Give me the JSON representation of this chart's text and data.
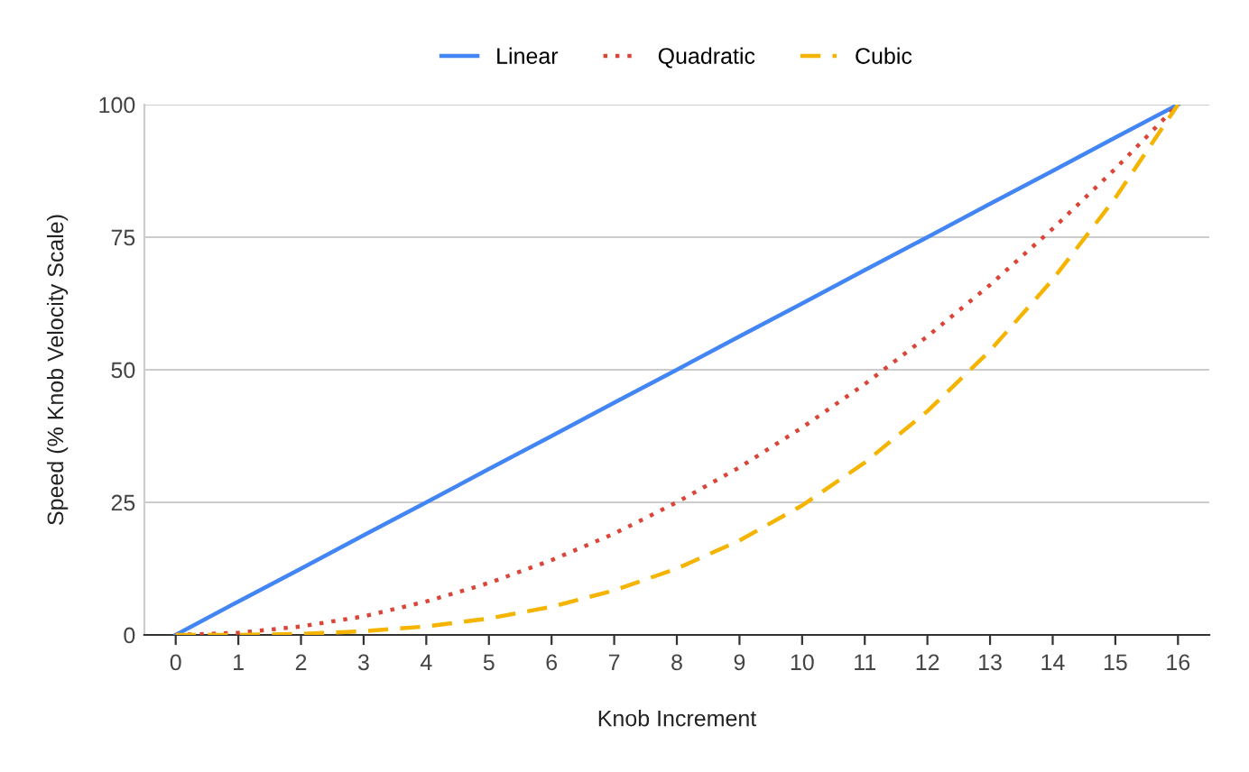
{
  "chart_data": {
    "type": "line",
    "xlabel": "Knob Increment",
    "ylabel": "Speed (% Knob Velocity Scale)",
    "x": [
      0,
      1,
      2,
      3,
      4,
      5,
      6,
      7,
      8,
      9,
      10,
      11,
      12,
      13,
      14,
      15,
      16
    ],
    "series": [
      {
        "name": "Linear",
        "color": "#4285f4",
        "line_style": "solid",
        "values": [
          0,
          6.3,
          12.5,
          18.8,
          25,
          31.3,
          37.5,
          43.8,
          50,
          56.3,
          62.5,
          68.8,
          75,
          81.3,
          87.5,
          93.8,
          100
        ]
      },
      {
        "name": "Quadratic",
        "color": "#db4437",
        "line_style": "dotted",
        "values": [
          0,
          0.4,
          1.6,
          3.5,
          6.3,
          9.8,
          14.1,
          19.1,
          25,
          31.6,
          39.1,
          47.3,
          56.3,
          66,
          76.6,
          87.9,
          100
        ]
      },
      {
        "name": "Cubic",
        "color": "#f4b400",
        "line_style": "dashed",
        "values": [
          0,
          0,
          0.2,
          0.7,
          1.6,
          3.1,
          5.3,
          8.4,
          12.5,
          17.8,
          24.4,
          32.5,
          42.2,
          53.6,
          67,
          82.4,
          100
        ]
      }
    ],
    "xlim": [
      -0.5,
      16.5
    ],
    "xticks": [
      0,
      1,
      2,
      3,
      4,
      5,
      6,
      7,
      8,
      9,
      10,
      11,
      12,
      13,
      14,
      15,
      16
    ],
    "ylim": [
      0,
      100
    ],
    "yticks": [
      0,
      25,
      50,
      75,
      100
    ],
    "grid": "y",
    "legend": "top",
    "marker": "none"
  }
}
